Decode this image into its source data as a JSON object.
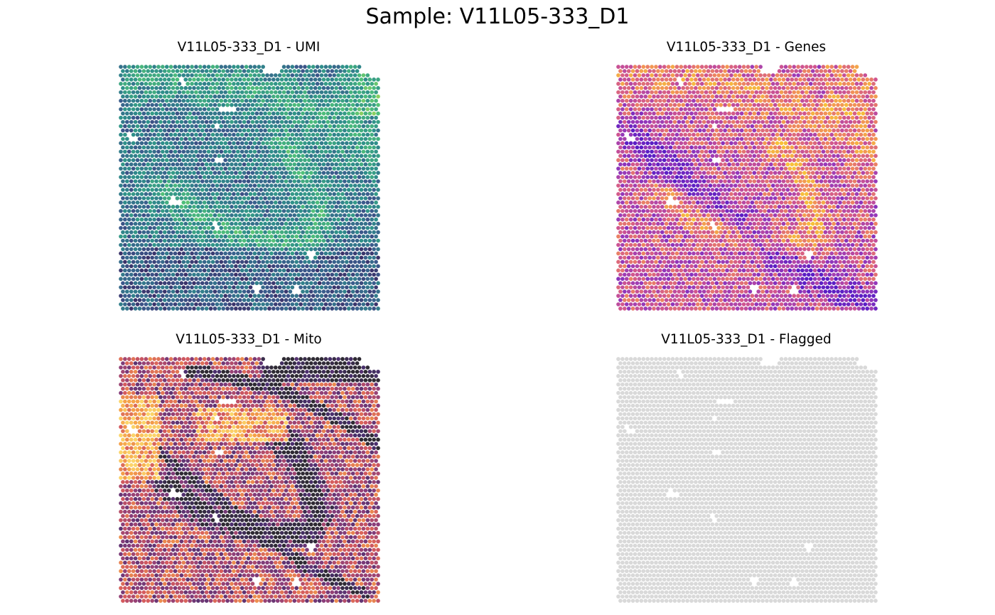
{
  "figure": {
    "suptitle": "Sample: V11L05-333_D1"
  },
  "chart_data": [
    {
      "type": "scatter",
      "title": "V11L05-333_D1 - UMI",
      "metric": "UMI",
      "colormap": "viridis",
      "colormap_range": [
        "#3b1b55",
        "#3b5a8c",
        "#2e8f8a",
        "#4fbf7a",
        "#c9e04a"
      ],
      "axes_visible": false
    },
    {
      "type": "scatter",
      "title": "V11L05-333_D1 - Genes",
      "metric": "Genes",
      "colormap": "plasma",
      "colormap_range": [
        "#5b1ec4",
        "#9a3ab8",
        "#d0558f",
        "#f08a5c",
        "#f7c13a"
      ],
      "axes_visible": false
    },
    {
      "type": "scatter",
      "title": "V11L05-333_D1 - Mito",
      "metric": "Mito",
      "colormap": "magma",
      "colormap_range": [
        "#2e2a33",
        "#4a2f6e",
        "#8a3d7a",
        "#d45a5e",
        "#f5a148",
        "#fbd46a"
      ],
      "axes_visible": false
    },
    {
      "type": "scatter",
      "title": "V11L05-333_D1 - Flagged",
      "metric": "Flagged",
      "colormap": "single",
      "colormap_range": [
        "#d9d9d9"
      ],
      "axes_visible": false
    }
  ],
  "missing_spot_color": "#ffffff"
}
